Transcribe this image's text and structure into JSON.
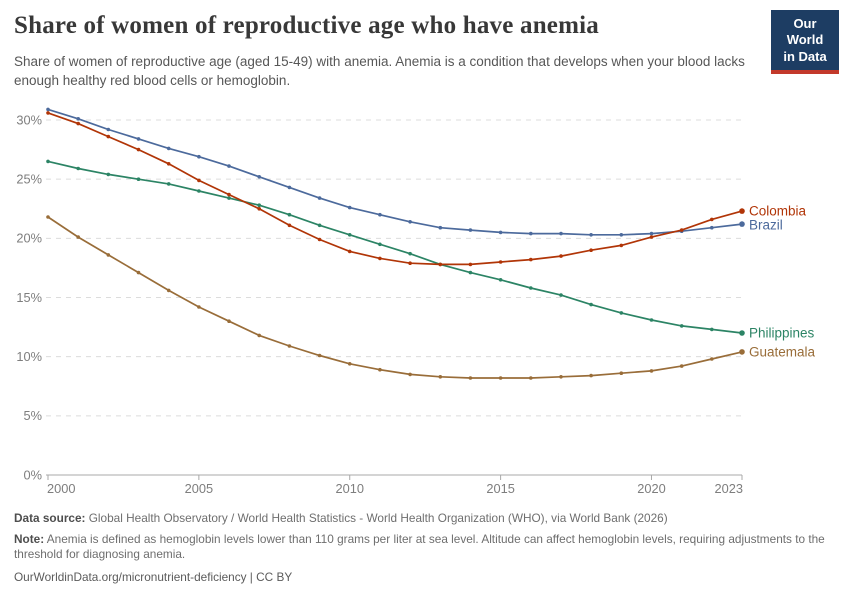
{
  "header": {
    "title": "Share of women of reproductive age who have anemia",
    "subtitle": "Share of women of reproductive age (aged 15-49) with anemia. Anemia is a condition that develops when your blood lacks enough healthy red blood cells or hemoglobin.",
    "logo": {
      "line1": "Our World",
      "line2": "in Data",
      "bg": "#1D3D63",
      "stripe": "#C3392B"
    }
  },
  "chart_data": {
    "type": "line",
    "title": "Share of women of reproductive age who have anemia",
    "xlabel": "",
    "ylabel": "",
    "x": [
      2000,
      2001,
      2002,
      2003,
      2004,
      2005,
      2006,
      2007,
      2008,
      2009,
      2010,
      2011,
      2012,
      2013,
      2014,
      2015,
      2016,
      2017,
      2018,
      2019,
      2020,
      2021,
      2022,
      2023
    ],
    "x_ticks": [
      2000,
      2005,
      2010,
      2015,
      2020,
      2023
    ],
    "xlim": [
      2000,
      2023
    ],
    "y_ticks": [
      0,
      5,
      10,
      15,
      20,
      25,
      30
    ],
    "y_tick_suffix": "%",
    "ylim": [
      0,
      30
    ],
    "grid": "horizontal-dashed",
    "legend": "end-of-line-labels",
    "marker": "dot",
    "series": [
      {
        "name": "Colombia",
        "color": "#B13507",
        "values": [
          30.6,
          29.7,
          28.6,
          27.5,
          26.3,
          24.9,
          23.7,
          22.5,
          21.1,
          19.9,
          18.9,
          18.3,
          17.9,
          17.8,
          17.8,
          18.0,
          18.2,
          18.5,
          19.0,
          19.4,
          20.1,
          20.7,
          21.6,
          22.3
        ]
      },
      {
        "name": "Brazil",
        "color": "#4C6A9C",
        "values": [
          30.9,
          30.1,
          29.2,
          28.4,
          27.6,
          26.9,
          26.1,
          25.2,
          24.3,
          23.4,
          22.6,
          22.0,
          21.4,
          20.9,
          20.7,
          20.5,
          20.4,
          20.4,
          20.3,
          20.3,
          20.4,
          20.6,
          20.9,
          21.2
        ]
      },
      {
        "name": "Philippines",
        "color": "#2C8465",
        "values": [
          26.5,
          25.9,
          25.4,
          25.0,
          24.6,
          24.0,
          23.4,
          22.8,
          22.0,
          21.1,
          20.3,
          19.5,
          18.7,
          17.8,
          17.1,
          16.5,
          15.8,
          15.2,
          14.4,
          13.7,
          13.1,
          12.6,
          12.3,
          12.0
        ]
      },
      {
        "name": "Guatemala",
        "color": "#996D39",
        "values": [
          21.8,
          20.1,
          18.6,
          17.1,
          15.6,
          14.2,
          13.0,
          11.8,
          10.9,
          10.1,
          9.4,
          8.9,
          8.5,
          8.3,
          8.2,
          8.2,
          8.2,
          8.3,
          8.4,
          8.6,
          8.8,
          9.2,
          9.8,
          10.4
        ]
      }
    ]
  },
  "colors": {
    "grid": "#DCDCDC",
    "axis": "#A8A8A8",
    "tick_text": "#7E7E7E",
    "title": "#383838",
    "subtitle": "#575757"
  },
  "footer": {
    "datasource_label": "Data source:",
    "datasource_text": " Global Health Observatory / World Health Statistics - World Health Organization (WHO), via World Bank (2026)",
    "note_label": "Note:",
    "note_text": " Anemia is defined as hemoglobin levels lower than 110 grams per liter at sea level. Altitude can affect hemoglobin levels, requiring adjustments to the threshold for diagnosing anemia.",
    "citation": "OurWorldinData.org/micronutrient-deficiency | CC BY"
  }
}
